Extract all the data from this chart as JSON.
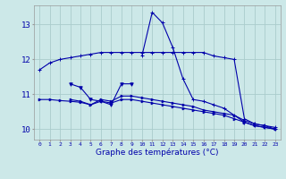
{
  "xlabel": "Graphe des températures (°C)",
  "background_color": "#cce8e8",
  "grid_color": "#aacccc",
  "line_color": "#0000aa",
  "x_ticks": [
    0,
    1,
    2,
    3,
    4,
    5,
    6,
    7,
    8,
    9,
    10,
    11,
    12,
    13,
    14,
    15,
    16,
    17,
    18,
    19,
    20,
    21,
    22,
    23
  ],
  "ylim": [
    9.7,
    13.55
  ],
  "xlim": [
    -0.5,
    23.5
  ],
  "series1_upper": {
    "x": [
      0,
      1,
      2,
      3,
      4,
      5,
      6,
      7,
      8,
      9,
      10,
      11,
      12,
      13,
      14,
      15,
      16,
      17,
      18,
      19,
      20,
      21,
      22,
      23
    ],
    "y": [
      11.7,
      11.9,
      12.0,
      12.05,
      12.1,
      12.15,
      12.2,
      12.2,
      12.2,
      12.2,
      12.2,
      12.2,
      12.2,
      12.2,
      12.2,
      12.2,
      12.2,
      12.1,
      12.05,
      12.0,
      10.3,
      10.15,
      10.1,
      10.05
    ]
  },
  "series2_peak": {
    "x": [
      10,
      11,
      12,
      13,
      14,
      15,
      16,
      17,
      18,
      19,
      20,
      21,
      22,
      23
    ],
    "y": [
      12.1,
      13.35,
      13.05,
      12.35,
      11.45,
      10.85,
      10.8,
      10.7,
      10.6,
      10.4,
      10.2,
      10.1,
      10.05,
      10.0
    ]
  },
  "series3_short": {
    "x": [
      3,
      4,
      5,
      6,
      7,
      8,
      9
    ],
    "y": [
      11.3,
      11.2,
      10.85,
      10.8,
      10.7,
      11.3,
      11.3
    ]
  },
  "series4_mid": {
    "x": [
      3,
      4,
      5,
      6,
      7,
      8,
      9,
      10,
      11,
      12,
      13,
      14,
      15,
      16,
      17,
      18,
      19,
      20,
      21,
      22,
      23
    ],
    "y": [
      10.85,
      10.8,
      10.7,
      10.85,
      10.8,
      10.95,
      10.95,
      10.9,
      10.85,
      10.8,
      10.75,
      10.7,
      10.65,
      10.55,
      10.5,
      10.45,
      10.4,
      10.25,
      10.15,
      10.1,
      10.0
    ]
  },
  "series5_low": {
    "x": [
      0,
      1,
      2,
      3,
      4,
      5,
      6,
      7,
      8,
      9,
      10,
      11,
      12,
      13,
      14,
      15,
      16,
      17,
      18,
      19,
      20,
      21,
      22,
      23
    ],
    "y": [
      10.85,
      10.85,
      10.82,
      10.8,
      10.77,
      10.7,
      10.8,
      10.75,
      10.85,
      10.85,
      10.8,
      10.75,
      10.7,
      10.65,
      10.6,
      10.55,
      10.5,
      10.45,
      10.4,
      10.3,
      10.2,
      10.1,
      10.05,
      10.0
    ]
  }
}
